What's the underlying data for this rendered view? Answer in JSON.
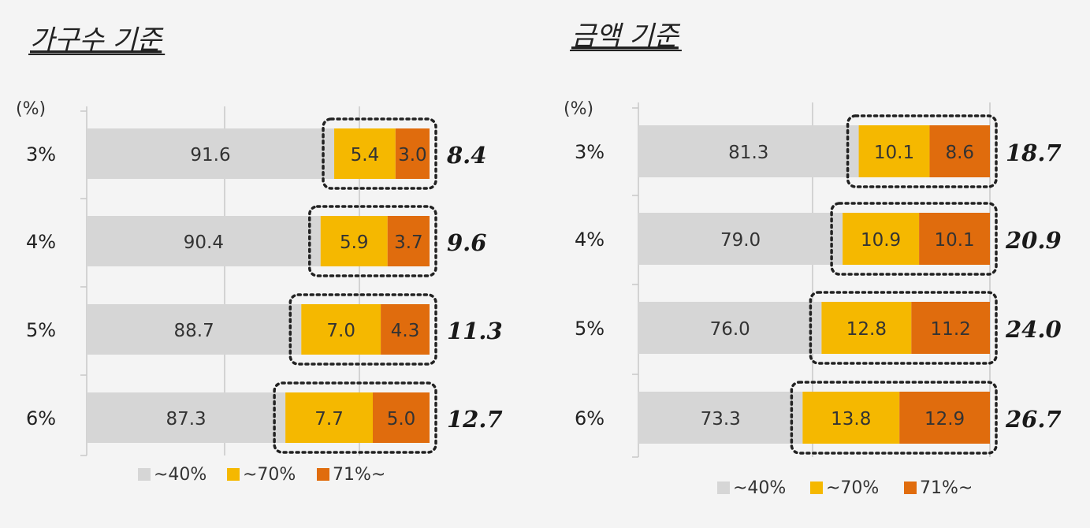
{
  "chart_data": [
    {
      "type": "bar",
      "orientation": "horizontal",
      "stacked": true,
      "title": "가구수 기준",
      "unit_label": "(%)",
      "categories": [
        "3%",
        "4%",
        "5%",
        "6%"
      ],
      "series": [
        {
          "name": "~40%",
          "color": "#d6d6d6",
          "values": [
            91.6,
            90.4,
            88.7,
            87.3
          ]
        },
        {
          "name": "~70%",
          "color": "#f5b800",
          "values": [
            5.4,
            5.9,
            7.0,
            7.7
          ]
        },
        {
          "name": "71%~",
          "color": "#e06c0d",
          "values": [
            3.0,
            3.7,
            4.3,
            5.0
          ]
        }
      ],
      "value_labels": [
        [
          "91.6",
          "5.4",
          "3.0"
        ],
        [
          "90.4",
          "5.9",
          "3.7"
        ],
        [
          "88.7",
          "7.0",
          "4.3"
        ],
        [
          "87.3",
          "7.7",
          "5.0"
        ]
      ],
      "highlight_sums": [
        "8.4",
        "9.6",
        "11.3",
        "12.7"
      ],
      "xlim": [
        0,
        100
      ],
      "grid": true,
      "legend_position": "bottom"
    },
    {
      "type": "bar",
      "orientation": "horizontal",
      "stacked": true,
      "title": "금액 기준",
      "unit_label": "(%)",
      "categories": [
        "3%",
        "4%",
        "5%",
        "6%"
      ],
      "series": [
        {
          "name": "~40%",
          "color": "#d6d6d6",
          "values": [
            81.3,
            79.0,
            76.0,
            73.3
          ]
        },
        {
          "name": "~70%",
          "color": "#f5b800",
          "values": [
            10.1,
            10.9,
            12.8,
            13.8
          ]
        },
        {
          "name": "71%~",
          "color": "#e06c0d",
          "values": [
            8.6,
            10.1,
            11.2,
            12.9
          ]
        }
      ],
      "value_labels": [
        [
          "81.3",
          "10.1",
          "8.6"
        ],
        [
          "79.0",
          "10.9",
          "10.1"
        ],
        [
          "76.0",
          "12.8",
          "11.2"
        ],
        [
          "73.3",
          "13.8",
          "12.9"
        ]
      ],
      "highlight_sums": [
        "18.7",
        "20.9",
        "24.0",
        "26.7"
      ],
      "xlim": [
        0,
        100
      ],
      "grid": true,
      "legend_position": "bottom"
    }
  ]
}
